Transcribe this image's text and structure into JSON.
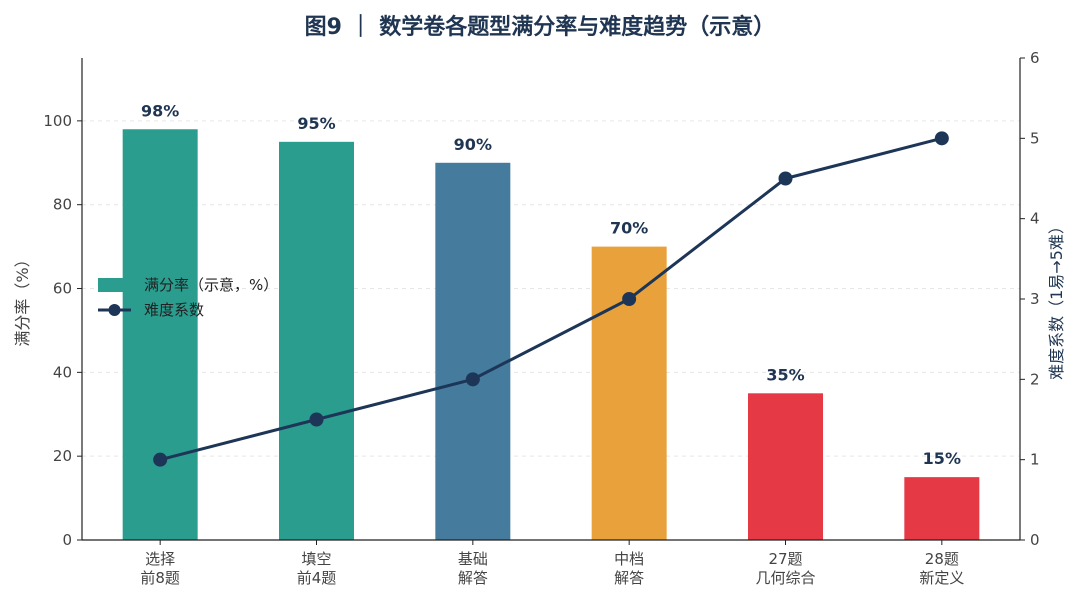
{
  "chart_data": {
    "type": "bar",
    "title": "图9 ｜ 数学卷各题型满分率与难度趋势（示意）",
    "categories": [
      [
        "选择",
        "前8题"
      ],
      [
        "填空",
        "前4题"
      ],
      [
        "基础",
        "解答"
      ],
      [
        "中档",
        "解答"
      ],
      [
        "27题",
        "几何综合"
      ],
      [
        "28题",
        "新定义"
      ]
    ],
    "series": [
      {
        "name": "满分率（示意，%）",
        "kind": "bar",
        "axis": "left",
        "values": [
          98,
          95,
          90,
          70,
          35,
          15
        ],
        "labels": [
          "98%",
          "95%",
          "90%",
          "70%",
          "35%",
          "15%"
        ],
        "colors": [
          "#2a9d8f",
          "#2a9d8f",
          "#457b9d",
          "#e9a23b",
          "#e63946",
          "#e63946"
        ]
      },
      {
        "name": "难度系数",
        "kind": "line",
        "axis": "right",
        "values": [
          1,
          1.5,
          2,
          3,
          4.5,
          5
        ],
        "color": "#1d3557"
      }
    ],
    "ylabel": "满分率（%）",
    "y2label": "难度系数（1易→5难）",
    "ylim": [
      0,
      115
    ],
    "y2lim": [
      0,
      6
    ],
    "yticks": [
      0,
      20,
      40,
      60,
      80,
      100
    ],
    "y2ticks": [
      0,
      1,
      2,
      3,
      4,
      5,
      6
    ],
    "grid": "horizontal dashed",
    "legend": "left-middle"
  }
}
